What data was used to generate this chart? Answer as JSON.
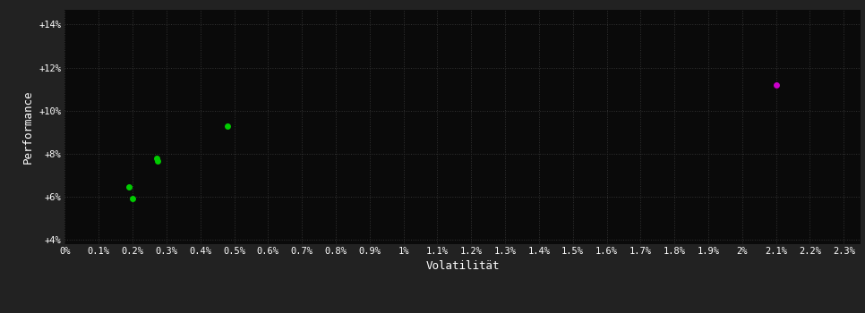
{
  "background_color": "#222222",
  "plot_bg_color": "#0a0a0a",
  "grid_color": "#333333",
  "text_color": "#ffffff",
  "xlabel": "Volatilität",
  "ylabel": "Performance",
  "xlim": [
    0.0,
    0.0235
  ],
  "ylim": [
    0.038,
    0.147
  ],
  "xtick_values": [
    0.0,
    0.001,
    0.002,
    0.003,
    0.004,
    0.005,
    0.006,
    0.007,
    0.008,
    0.009,
    0.01,
    0.011,
    0.012,
    0.013,
    0.014,
    0.015,
    0.016,
    0.017,
    0.018,
    0.019,
    0.02,
    0.021,
    0.022,
    0.023
  ],
  "xtick_labels": [
    "0%",
    "0.1%",
    "0.2%",
    "0.3%",
    "0.4%",
    "0.5%",
    "0.6%",
    "0.7%",
    "0.8%",
    "0.9%",
    "1%",
    "1.1%",
    "1.2%",
    "1.3%",
    "1.4%",
    "1.5%",
    "1.6%",
    "1.7%",
    "1.8%",
    "1.9%",
    "2%",
    "2.1%",
    "2.2%",
    "2.3%"
  ],
  "ytick_values": [
    0.04,
    0.06,
    0.08,
    0.1,
    0.12,
    0.14
  ],
  "ytick_labels": [
    "+4%",
    "+6%",
    "+8%",
    "+10%",
    "+12%",
    "+14%"
  ],
  "green_points": [
    [
      0.0019,
      0.0645
    ],
    [
      0.002,
      0.059
    ],
    [
      0.0027,
      0.078
    ],
    [
      0.00275,
      0.0765
    ],
    [
      0.0048,
      0.093
    ]
  ],
  "magenta_points": [
    [
      0.021,
      0.112
    ]
  ],
  "green_color": "#00cc00",
  "magenta_color": "#cc00cc",
  "marker_size": 5
}
